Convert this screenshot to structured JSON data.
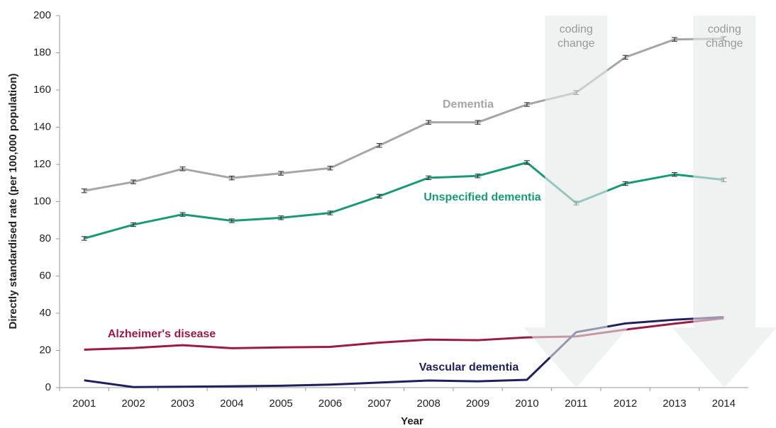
{
  "chart_data": {
    "type": "line",
    "x_label": "Year",
    "y_label": "Directly standardised rate (per 100,000 population)",
    "categories": [
      "2001",
      "2002",
      "2003",
      "2004",
      "2005",
      "2006",
      "2007",
      "2008",
      "2009",
      "2010",
      "2011",
      "2012",
      "2013",
      "2014"
    ],
    "ylim": [
      0,
      200
    ],
    "yticks": [
      0,
      20,
      40,
      60,
      80,
      100,
      120,
      140,
      160,
      180,
      200
    ],
    "annotations": [
      "coding change",
      "coding change"
    ],
    "series": [
      {
        "name": "Dementia",
        "color": "#a6a6a6",
        "values": [
          105.8,
          110.6,
          117.6,
          112.7,
          115.2,
          118.0,
          130.2,
          142.6,
          142.6,
          152.2,
          158.6,
          177.6,
          187.2,
          187.6
        ],
        "errors": [
          1,
          1,
          1,
          1,
          1,
          1,
          1,
          1,
          1,
          1,
          1,
          1,
          1,
          1
        ]
      },
      {
        "name": "Unspecified dementia",
        "color": "#1a9a74",
        "values": [
          80.2,
          87.6,
          93.1,
          89.7,
          91.3,
          93.9,
          102.9,
          112.8,
          113.8,
          121.0,
          99.2,
          109.7,
          114.6,
          111.7
        ],
        "errors": [
          1,
          1,
          1,
          1,
          1,
          1,
          1,
          1,
          1,
          1,
          1,
          1,
          1,
          1
        ]
      },
      {
        "name": "Alzheimer's disease",
        "color": "#9b1b46",
        "values": [
          20.4,
          21.3,
          22.8,
          21.2,
          21.6,
          21.9,
          24.2,
          25.8,
          25.5,
          27.0,
          27.5,
          31.2,
          34.4,
          37.3
        ]
      },
      {
        "name": "Vascular dementia",
        "color": "#1f1f5c",
        "values": [
          3.9,
          0.3,
          0.5,
          0.7,
          1.0,
          1.6,
          2.7,
          3.8,
          3.4,
          4.2,
          29.8,
          34.5,
          36.5,
          37.9
        ]
      }
    ]
  }
}
